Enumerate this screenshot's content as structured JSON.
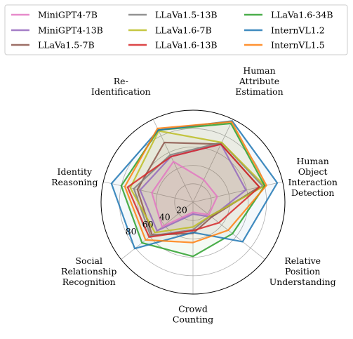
{
  "chart_data": {
    "type": "radar",
    "title": "",
    "axes": [
      "Human\nAttribute\nEstimation",
      "Human\nObject\nInteraction\nDetection",
      "Relative\nPosition\nUnderstanding",
      "Crowd\nCounting",
      "Social\nRelationship\nRecognition",
      "Identity\nReasoning",
      "Re-\nIdentification"
    ],
    "r_range": [
      0,
      100
    ],
    "r_ticks": [
      20,
      40,
      60,
      80
    ],
    "r_tick_labels": [
      "20",
      "40",
      "60",
      "80"
    ],
    "grid": true,
    "legend_position": "top",
    "series": [
      {
        "name": "MiniGPT4-7B",
        "color": "#e377c2",
        "values": [
          27,
          27,
          22,
          11,
          43,
          46,
          49
        ]
      },
      {
        "name": "MiniGPT4-13B",
        "color": "#9467bd",
        "values": [
          70,
          59,
          26,
          13,
          50,
          59,
          55
        ]
      },
      {
        "name": "LLaVa1.5-7B",
        "color": "#8c564b",
        "values": [
          70,
          74,
          26,
          34,
          57,
          62,
          72
        ]
      },
      {
        "name": "LLaVa1.5-13B",
        "color": "#7f7f7f",
        "values": [
          72,
          78,
          24,
          30,
          59,
          66,
          57
        ]
      },
      {
        "name": "LLaVa1.6-7B",
        "color": "#bcbd22",
        "values": [
          72,
          80,
          24,
          27,
          53,
          70,
          86
        ]
      },
      {
        "name": "LLaVa1.6-13B",
        "color": "#d62728",
        "values": [
          70,
          74,
          36,
          31,
          61,
          73,
          55
        ]
      },
      {
        "name": "LLaVa1.6-34B",
        "color": "#2ca02c",
        "values": [
          95,
          80,
          55,
          59,
          71,
          80,
          87
        ]
      },
      {
        "name": "InternVL1.2",
        "color": "#1f77b4",
        "values": [
          98,
          94,
          69,
          33,
          81,
          91,
          87
        ]
      },
      {
        "name": "InternVL1.5",
        "color": "#ff7f0e",
        "values": [
          97,
          82,
          49,
          44,
          66,
          76,
          89
        ]
      }
    ]
  }
}
